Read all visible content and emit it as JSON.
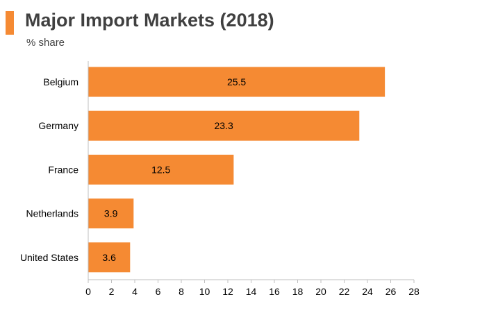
{
  "header": {
    "accent_color": "#f58a33",
    "title": "Major Import Markets (2018)",
    "subtitle": "% share"
  },
  "chart_data": {
    "type": "bar",
    "orientation": "horizontal",
    "title": "Major Import Markets (2018)",
    "subtitle": "% share",
    "xlabel": "",
    "ylabel": "",
    "categories": [
      "Belgium",
      "Germany",
      "France",
      "Netherlands",
      "United States"
    ],
    "values": [
      25.5,
      23.3,
      12.5,
      3.9,
      3.6
    ],
    "data_labels": [
      "25.5",
      "23.3",
      "12.5",
      "3.9",
      "3.6"
    ],
    "xlim": [
      0,
      28
    ],
    "x_ticks": [
      0,
      2,
      4,
      6,
      8,
      10,
      12,
      14,
      16,
      18,
      20,
      22,
      24,
      26,
      28
    ],
    "bar_color": "#f58a33",
    "grid": false,
    "legend": "none"
  }
}
